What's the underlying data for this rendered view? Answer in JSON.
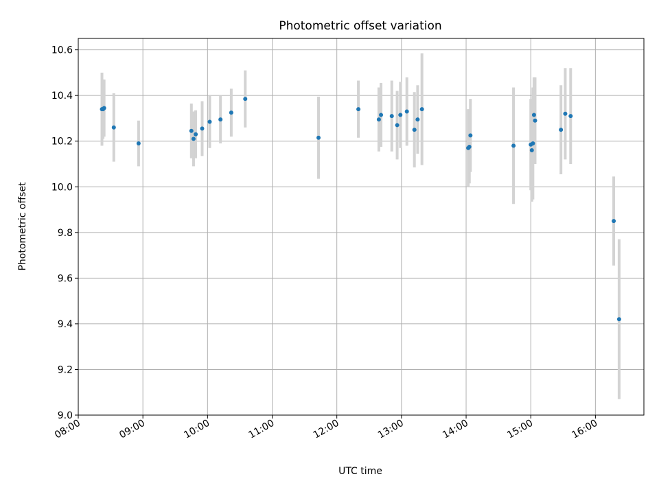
{
  "chart_data": {
    "type": "scatter",
    "title": "Photometric offset variation",
    "xlabel": "UTC time",
    "ylabel": "Photometric offset",
    "x_unit": "hours UTC",
    "xlim": [
      "08:00",
      "16:45"
    ],
    "ylim": [
      9.0,
      10.65
    ],
    "x_ticks": [
      "08:00",
      "09:00",
      "10:00",
      "11:00",
      "12:00",
      "13:00",
      "14:00",
      "15:00",
      "16:00"
    ],
    "y_ticks": [
      "9.0",
      "9.2",
      "9.4",
      "9.6",
      "9.8",
      "10.0",
      "10.2",
      "10.4",
      "10.6"
    ],
    "grid": true,
    "legend": "none",
    "colors": {
      "point": "#1f77b4",
      "errorbar": "#d3d3d3",
      "grid": "#b0b0b0"
    },
    "series": [
      {
        "points": [
          {
            "x": "08:22",
            "y": 10.34,
            "err": 0.16
          },
          {
            "x": "08:23",
            "y": 10.34,
            "err": 0.13
          },
          {
            "x": "08:24",
            "y": 10.345,
            "err": 0.125
          },
          {
            "x": "08:33",
            "y": 10.26,
            "err": 0.15
          },
          {
            "x": "08:56",
            "y": 10.19,
            "err": 0.1
          },
          {
            "x": "09:45",
            "y": 10.245,
            "err": 0.12
          },
          {
            "x": "09:47",
            "y": 10.21,
            "err": 0.12
          },
          {
            "x": "09:49",
            "y": 10.23,
            "err": 0.105
          },
          {
            "x": "09:55",
            "y": 10.255,
            "err": 0.12
          },
          {
            "x": "10:02",
            "y": 10.285,
            "err": 0.115
          },
          {
            "x": "10:12",
            "y": 10.295,
            "err": 0.105
          },
          {
            "x": "10:22",
            "y": 10.325,
            "err": 0.105
          },
          {
            "x": "10:35",
            "y": 10.385,
            "err": 0.125
          },
          {
            "x": "11:43",
            "y": 10.215,
            "err": 0.18
          },
          {
            "x": "12:20",
            "y": 10.34,
            "err": 0.125
          },
          {
            "x": "12:39",
            "y": 10.295,
            "err": 0.14
          },
          {
            "x": "12:41",
            "y": 10.315,
            "err": 0.14
          },
          {
            "x": "12:51",
            "y": 10.31,
            "err": 0.155
          },
          {
            "x": "12:56",
            "y": 10.27,
            "err": 0.15
          },
          {
            "x": "12:59",
            "y": 10.315,
            "err": 0.145
          },
          {
            "x": "13:05",
            "y": 10.33,
            "err": 0.15
          },
          {
            "x": "13:12",
            "y": 10.25,
            "err": 0.165
          },
          {
            "x": "13:15",
            "y": 10.295,
            "err": 0.15
          },
          {
            "x": "13:19",
            "y": 10.34,
            "err": 0.245
          },
          {
            "x": "14:02",
            "y": 10.17,
            "err": 0.17
          },
          {
            "x": "14:03",
            "y": 10.175,
            "err": 0.16
          },
          {
            "x": "14:04",
            "y": 10.225,
            "err": 0.16
          },
          {
            "x": "14:44",
            "y": 10.18,
            "err": 0.255
          },
          {
            "x": "15:00",
            "y": 10.185,
            "err": 0.2
          },
          {
            "x": "15:01",
            "y": 10.16,
            "err": 0.225
          },
          {
            "x": "15:02",
            "y": 10.19,
            "err": 0.245
          },
          {
            "x": "15:03",
            "y": 10.315,
            "err": 0.165
          },
          {
            "x": "15:04",
            "y": 10.29,
            "err": 0.19
          },
          {
            "x": "15:28",
            "y": 10.25,
            "err": 0.195
          },
          {
            "x": "15:32",
            "y": 10.32,
            "err": 0.2
          },
          {
            "x": "15:37",
            "y": 10.31,
            "err": 0.21
          },
          {
            "x": "16:17",
            "y": 9.85,
            "err": 0.195
          },
          {
            "x": "16:22",
            "y": 9.42,
            "err": 0.35
          }
        ]
      }
    ]
  }
}
